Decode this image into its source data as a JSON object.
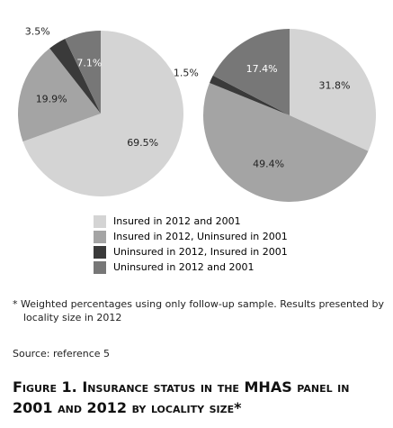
{
  "chart_data": [
    {
      "type": "pie",
      "values": [
        69.5,
        19.9,
        3.5,
        7.1
      ],
      "value_labels": [
        "69.5%",
        "19.9%",
        "3.5%",
        "7.1%"
      ],
      "colors": [
        "#d4d4d4",
        "#a4a4a4",
        "#3a3a3a",
        "#777777"
      ]
    },
    {
      "type": "pie",
      "values": [
        31.8,
        49.4,
        1.5,
        17.4
      ],
      "value_labels": [
        "31.8%",
        "49.4%",
        "1.5%",
        "17.4%"
      ],
      "colors": [
        "#d4d4d4",
        "#a4a4a4",
        "#3a3a3a",
        "#777777"
      ]
    }
  ],
  "legend": {
    "labels": [
      "Insured in 2012 and 2001",
      "Insured in 2012, Uninsured in 2001",
      "Uninsured in 2012, Insured in 2001",
      "Uninsured in 2012 and 2001"
    ],
    "colors": [
      "#d4d4d4",
      "#a4a4a4",
      "#3a3a3a",
      "#777777"
    ]
  },
  "footnote": "* Weighted percentages using only follow-up sample. Results presented by locality size in 2012",
  "source": "Source: reference 5",
  "figure_caption": "Figure 1. Insurance status in the MHAS panel in 2001 and 2012 by locality size*"
}
